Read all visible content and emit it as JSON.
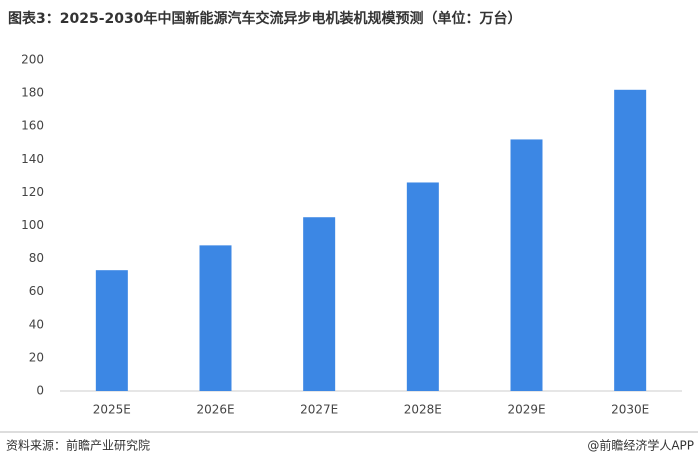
{
  "chart_data": {
    "type": "bar",
    "title": "图表3：2025-2030年中国新能源汽车交流异步电机装机规模预测（单位：万台）",
    "categories": [
      "2025E",
      "2026E",
      "2027E",
      "2028E",
      "2029E",
      "2030E"
    ],
    "values": [
      73,
      88,
      105,
      126,
      152,
      182
    ],
    "color": "#3c87e4",
    "ylim": [
      0,
      200
    ],
    "yticks": [
      0,
      20,
      40,
      60,
      80,
      100,
      120,
      140,
      160,
      180,
      200
    ],
    "grid": false,
    "source": "资料来源：前瞻产业研究院",
    "brand": "@前瞻经济学人APP"
  }
}
